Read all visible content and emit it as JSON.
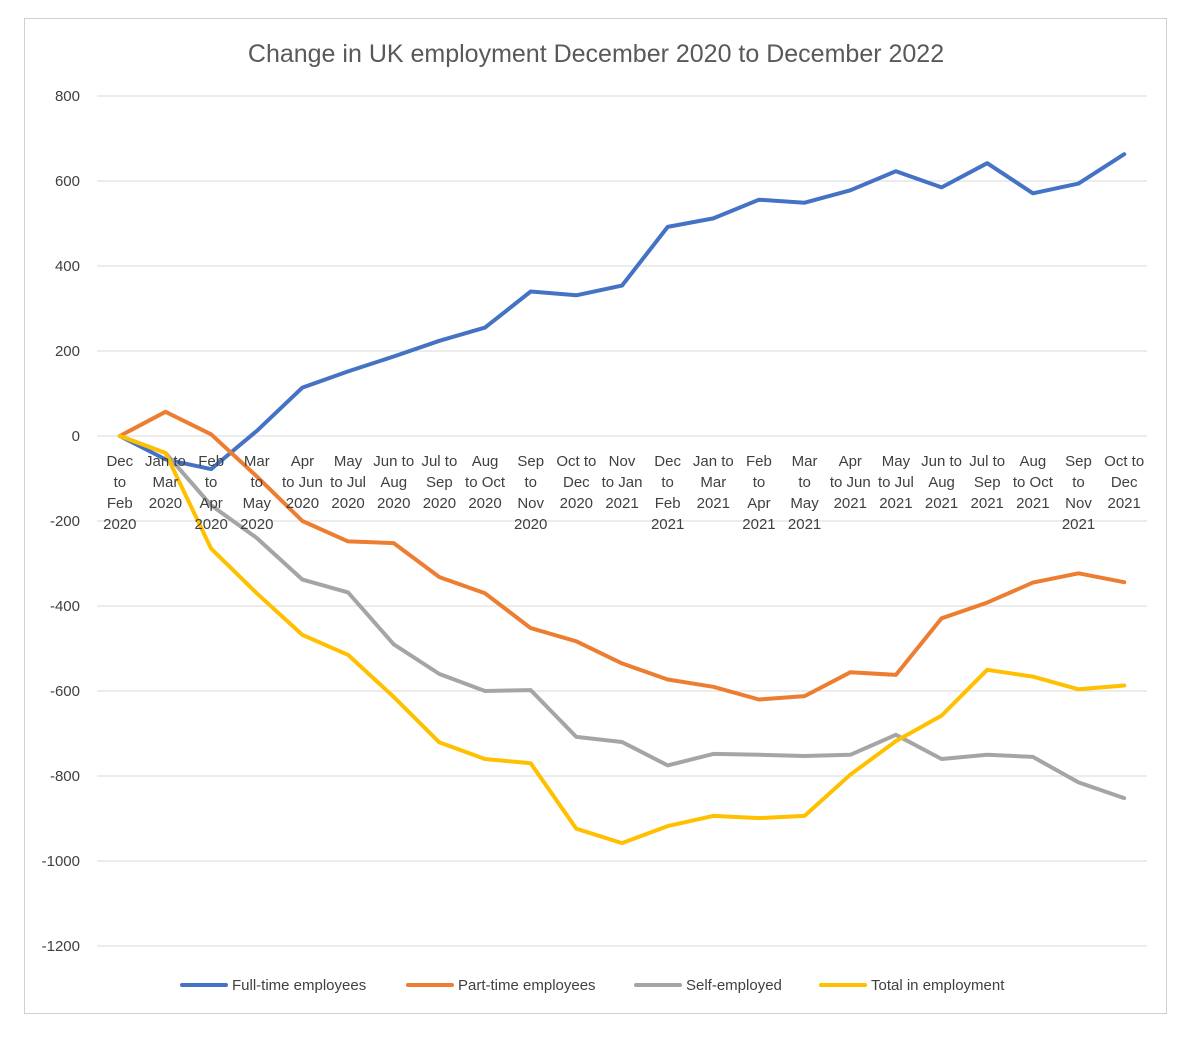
{
  "chart_data": {
    "type": "line",
    "title": "Change in UK employment December 2020 to December 2022",
    "xlabel": "",
    "ylabel": "",
    "ylim": [
      -1200,
      800
    ],
    "yticks": [
      800,
      600,
      400,
      200,
      0,
      -200,
      -400,
      -600,
      -800,
      -1000,
      -1200
    ],
    "grid": true,
    "legend_position": "bottom",
    "categories": [
      "Dec to Feb 2020",
      "Jan to Mar 2020",
      "Feb to Apr 2020",
      "Mar to May 2020",
      "Apr to Jun 2020",
      "May to Jul 2020",
      "Jun to Aug 2020",
      "Jul to Sep 2020",
      "Aug to Oct 2020",
      "Sep to Nov 2020",
      "Oct to Dec 2020",
      "Nov to Jan 2021",
      "Dec to Feb 2021",
      "Jan to Mar 2021",
      "Feb to Apr 2021",
      "Mar to May 2021",
      "Apr to Jun 2021",
      "May to Jul 2021",
      "Jun to Aug 2021",
      "Jul to Sep 2021",
      "Aug to Oct 2021",
      "Sep to Nov 2021",
      "Oct to Dec 2021"
    ],
    "category_lines": [
      [
        "Dec",
        "to",
        "Feb",
        "2020"
      ],
      [
        "Jan to",
        "Mar",
        "2020"
      ],
      [
        "Feb",
        "to",
        "Apr",
        "2020"
      ],
      [
        "Mar",
        "to",
        "May",
        "2020"
      ],
      [
        "Apr",
        "to Jun",
        "2020"
      ],
      [
        "May",
        "to Jul",
        "2020"
      ],
      [
        "Jun to",
        "Aug",
        "2020"
      ],
      [
        "Jul to",
        "Sep",
        "2020"
      ],
      [
        "Aug",
        "to Oct",
        "2020"
      ],
      [
        "Sep",
        "to",
        "Nov",
        "2020"
      ],
      [
        "Oct to",
        "Dec",
        "2020"
      ],
      [
        "Nov",
        "to Jan",
        "2021"
      ],
      [
        "Dec",
        "to",
        "Feb",
        "2021"
      ],
      [
        "Jan to",
        "Mar",
        "2021"
      ],
      [
        "Feb",
        "to",
        "Apr",
        "2021"
      ],
      [
        "Mar",
        "to",
        "May",
        "2021"
      ],
      [
        "Apr",
        "to Jun",
        "2021"
      ],
      [
        "May",
        "to Jul",
        "2021"
      ],
      [
        "Jun to",
        "Aug",
        "2021"
      ],
      [
        "Jul to",
        "Sep",
        "2021"
      ],
      [
        "Aug",
        "to Oct",
        "2021"
      ],
      [
        "Sep",
        "to",
        "Nov",
        "2021"
      ],
      [
        "Oct to",
        "Dec",
        "2021"
      ]
    ],
    "series": [
      {
        "name": "Full-time employees",
        "color": "#4472C4",
        "values": [
          0,
          -55,
          -78,
          12,
          114,
          152,
          187,
          224,
          255,
          340,
          331,
          354,
          492,
          512,
          556,
          549,
          578,
          623,
          585,
          642,
          571,
          594,
          663
        ]
      },
      {
        "name": "Part-time employees",
        "color": "#ED7D31",
        "values": [
          0,
          57,
          4,
          -95,
          -200,
          -248,
          -252,
          -332,
          -370,
          -452,
          -483,
          -535,
          -573,
          -590,
          -620,
          -612,
          -556,
          -562,
          -429,
          -392,
          -345,
          -323,
          -344
        ]
      },
      {
        "name": "Self-employed",
        "color": "#A5A5A5",
        "values": [
          0,
          -40,
          -163,
          -240,
          -338,
          -368,
          -490,
          -560,
          -600,
          -598,
          -708,
          -720,
          -775,
          -748,
          -750,
          -753,
          -750,
          -703,
          -760,
          -750,
          -755,
          -815,
          -852
        ]
      },
      {
        "name": "Total in employment",
        "color": "#FFC000",
        "values": [
          0,
          -40,
          -265,
          -370,
          -468,
          -515,
          -614,
          -721,
          -760,
          -770,
          -924,
          -958,
          -918,
          -894,
          -899,
          -894,
          -797,
          -718,
          -658,
          -550,
          -566,
          -596,
          -587
        ]
      }
    ]
  }
}
